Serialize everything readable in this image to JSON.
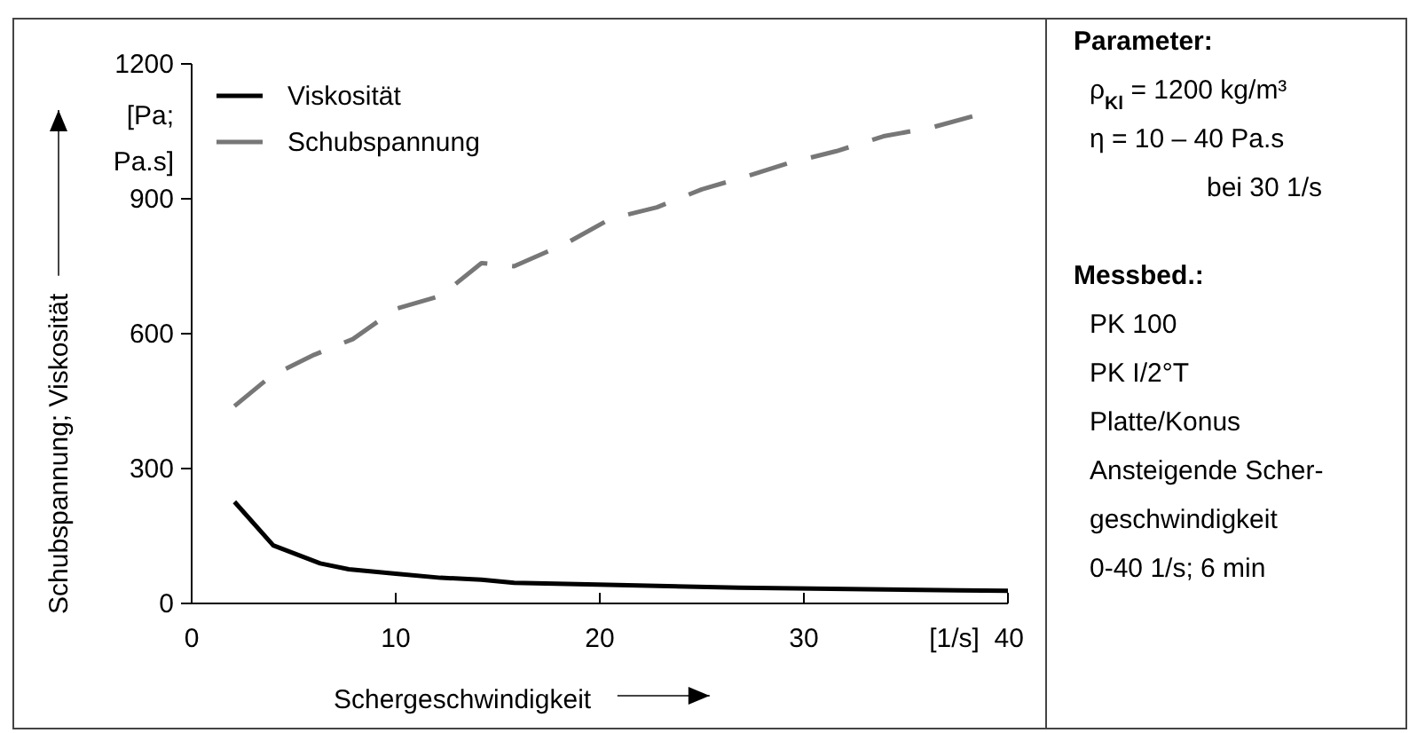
{
  "chart_data": {
    "type": "line",
    "xlabel": "Schergeschwindigkeit",
    "ylabel": "Schubspannung; Viskosität",
    "xlim": [
      0,
      40
    ],
    "xticks": [
      0,
      10,
      20,
      30,
      {
        "value": 40,
        "label": "[1/s]  40"
      }
    ],
    "ylim": [
      0,
      1200
    ],
    "yticks": [
      0,
      300,
      600,
      900,
      1200
    ],
    "legend": "top left",
    "grid": false,
    "marker": "none",
    "series": [
      {
        "name": "Viskosität",
        "color": "#000000",
        "line_style": "solid",
        "x": [
          2.1,
          4,
          6.3,
          7.7,
          10,
          12.2,
          14.2,
          15.8,
          19.9,
          26.8,
          37.6,
          40
        ],
        "values": [
          226,
          129,
          89,
          76,
          66,
          57,
          53,
          46,
          42,
          35,
          29,
          28
        ]
      },
      {
        "name": "Schubspannung",
        "color": "#777777",
        "line_style": "dashed",
        "x": [
          2.1,
          3.9,
          6,
          7.9,
          10,
          12.2,
          14.2,
          15.8,
          18.4,
          20.5,
          22.8,
          25,
          27.2,
          29.3,
          31.6,
          33.9,
          36.3,
          38.4
        ],
        "values": [
          439,
          506,
          553,
          588,
          655,
          684,
          757,
          750,
          802,
          855,
          881,
          921,
          950,
          980,
          1006,
          1039,
          1059,
          1085
        ]
      }
    ],
    "annotations": [
      "[Pa; Pa.s]",
      "Parameter:",
      "ρ$_{Kl}$ = 1200 kg/m³",
      "η = 10 – 40 Pa.s",
      "bei 30 1/s",
      "Messbed.:",
      "PK 100",
      "PK I/2°T",
      "Platte/Konus",
      "Ansteigende Scher-",
      "geschwindigkeit",
      "0-40 1/s; 6 min"
    ]
  }
}
